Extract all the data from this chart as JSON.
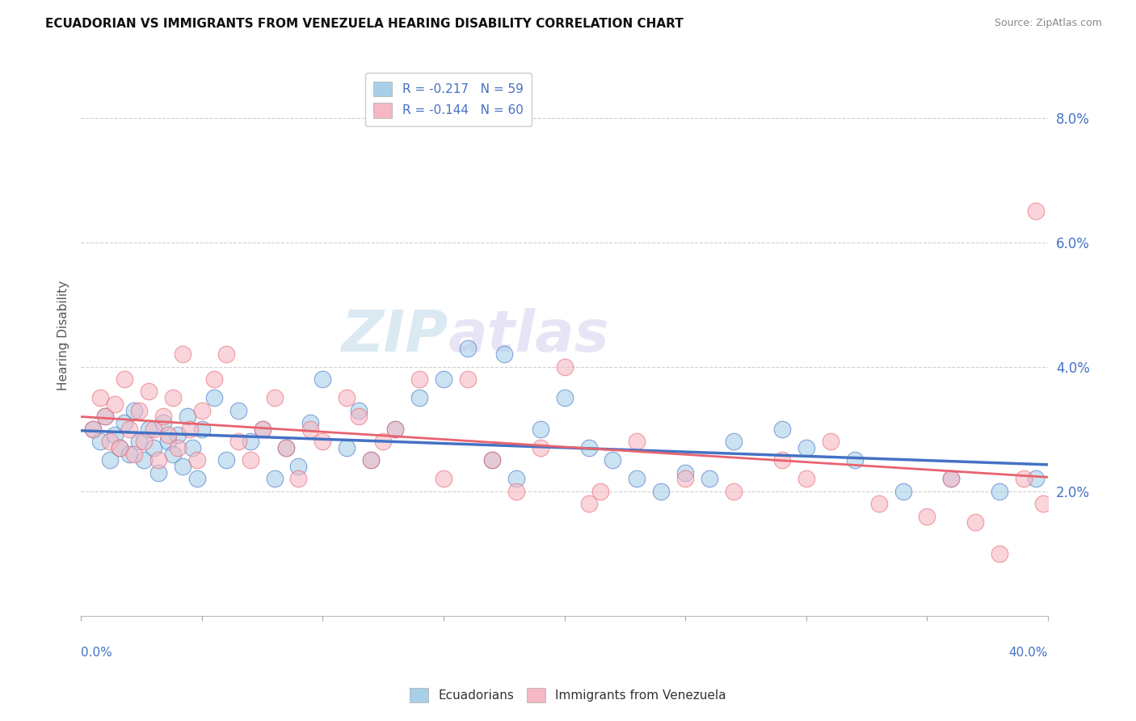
{
  "title": "ECUADORIAN VS IMMIGRANTS FROM VENEZUELA HEARING DISABILITY CORRELATION CHART",
  "source": "Source: ZipAtlas.com",
  "ylabel": "Hearing Disability",
  "legend_ecuadorians": "Ecuadorians",
  "legend_venezuela": "Immigrants from Venezuela",
  "r_ecuadorians": -0.217,
  "n_ecuadorians": 59,
  "r_venezuela": -0.144,
  "n_venezuela": 60,
  "xmin": 0.0,
  "xmax": 0.4,
  "ymin": 0.0,
  "ymax": 0.09,
  "yticks": [
    0.02,
    0.04,
    0.06,
    0.08
  ],
  "ytick_labels": [
    "2.0%",
    "4.0%",
    "6.0%",
    "8.0%"
  ],
  "color_ecuadorians": "#a8cfe8",
  "color_venezuela": "#f5b8c4",
  "color_ecuadorians_line": "#4472c4",
  "color_venezuela_line": "#e8636e",
  "scatter_ecuadorians_x": [
    0.005,
    0.008,
    0.01,
    0.012,
    0.014,
    0.016,
    0.018,
    0.02,
    0.022,
    0.024,
    0.026,
    0.028,
    0.03,
    0.032,
    0.034,
    0.036,
    0.038,
    0.04,
    0.042,
    0.044,
    0.046,
    0.048,
    0.05,
    0.055,
    0.06,
    0.065,
    0.07,
    0.075,
    0.08,
    0.085,
    0.09,
    0.095,
    0.1,
    0.11,
    0.115,
    0.12,
    0.13,
    0.14,
    0.15,
    0.16,
    0.17,
    0.175,
    0.18,
    0.19,
    0.2,
    0.21,
    0.22,
    0.23,
    0.24,
    0.25,
    0.26,
    0.27,
    0.29,
    0.3,
    0.32,
    0.34,
    0.36,
    0.38,
    0.395
  ],
  "scatter_ecuadorians_y": [
    0.03,
    0.028,
    0.032,
    0.025,
    0.029,
    0.027,
    0.031,
    0.026,
    0.033,
    0.028,
    0.025,
    0.03,
    0.027,
    0.023,
    0.031,
    0.028,
    0.026,
    0.029,
    0.024,
    0.032,
    0.027,
    0.022,
    0.03,
    0.035,
    0.025,
    0.033,
    0.028,
    0.03,
    0.022,
    0.027,
    0.024,
    0.031,
    0.038,
    0.027,
    0.033,
    0.025,
    0.03,
    0.035,
    0.038,
    0.043,
    0.025,
    0.042,
    0.022,
    0.03,
    0.035,
    0.027,
    0.025,
    0.022,
    0.02,
    0.023,
    0.022,
    0.028,
    0.03,
    0.027,
    0.025,
    0.02,
    0.022,
    0.02,
    0.022
  ],
  "scatter_venezuela_x": [
    0.005,
    0.008,
    0.01,
    0.012,
    0.014,
    0.016,
    0.018,
    0.02,
    0.022,
    0.024,
    0.026,
    0.028,
    0.03,
    0.032,
    0.034,
    0.036,
    0.038,
    0.04,
    0.042,
    0.045,
    0.048,
    0.05,
    0.055,
    0.06,
    0.065,
    0.07,
    0.075,
    0.08,
    0.085,
    0.09,
    0.095,
    0.1,
    0.11,
    0.115,
    0.12,
    0.125,
    0.13,
    0.14,
    0.15,
    0.16,
    0.17,
    0.18,
    0.19,
    0.2,
    0.21,
    0.215,
    0.23,
    0.25,
    0.27,
    0.29,
    0.3,
    0.31,
    0.33,
    0.35,
    0.36,
    0.37,
    0.38,
    0.39,
    0.395,
    0.398
  ],
  "scatter_venezuela_y": [
    0.03,
    0.035,
    0.032,
    0.028,
    0.034,
    0.027,
    0.038,
    0.03,
    0.026,
    0.033,
    0.028,
    0.036,
    0.03,
    0.025,
    0.032,
    0.029,
    0.035,
    0.027,
    0.042,
    0.03,
    0.025,
    0.033,
    0.038,
    0.042,
    0.028,
    0.025,
    0.03,
    0.035,
    0.027,
    0.022,
    0.03,
    0.028,
    0.035,
    0.032,
    0.025,
    0.028,
    0.03,
    0.038,
    0.022,
    0.038,
    0.025,
    0.02,
    0.027,
    0.04,
    0.018,
    0.02,
    0.028,
    0.022,
    0.02,
    0.025,
    0.022,
    0.028,
    0.018,
    0.016,
    0.022,
    0.015,
    0.01,
    0.022,
    0.065,
    0.018
  ]
}
